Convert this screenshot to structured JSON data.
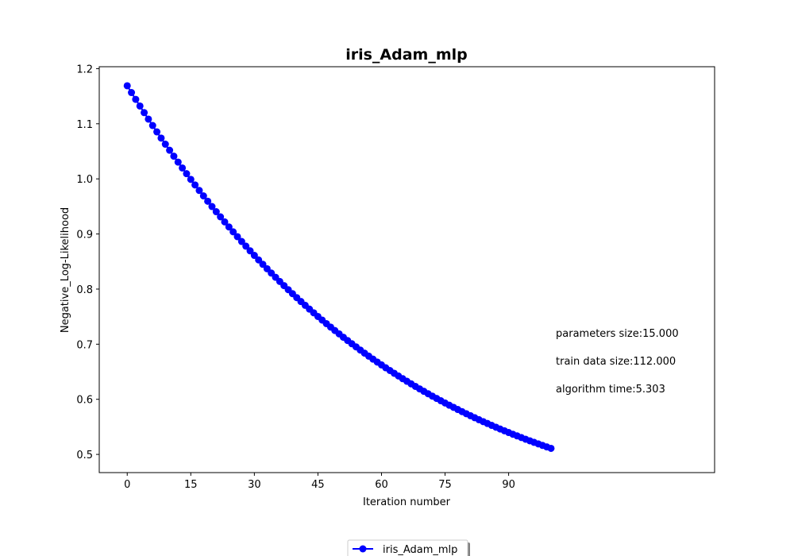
{
  "chart_data": {
    "type": "line",
    "title": "iris_Adam_mlp",
    "xlabel": "Iteration number",
    "ylabel": "Negative_Log-Likelihood",
    "xlim": [
      -6.6,
      138.6
    ],
    "ylim": [
      0.467,
      1.2035
    ],
    "xticks": [
      0,
      15,
      30,
      45,
      60,
      75,
      90
    ],
    "yticks": [
      0.5,
      0.6,
      0.7,
      0.8,
      0.9,
      1.0,
      1.1,
      1.2
    ],
    "ytick_labels": [
      "0.5",
      "0.6",
      "0.7",
      "0.8",
      "0.9",
      "1.0",
      "1.1",
      "1.2"
    ],
    "grid": false,
    "legend_position": "bottom-center",
    "series": [
      {
        "name": "iris_Adam_mlp",
        "color": "#0000ff",
        "marker": "circle",
        "x_start": 0,
        "x_step": 1,
        "values": [
          1.169,
          1.1566,
          1.1443,
          1.1322,
          1.1202,
          1.1084,
          1.0968,
          1.0853,
          1.074,
          1.0629,
          1.0519,
          1.0411,
          1.0304,
          1.0198,
          1.0094,
          0.9991,
          0.989,
          0.979,
          0.9691,
          0.9594,
          0.9498,
          0.9404,
          0.9311,
          0.9219,
          0.9128,
          0.9039,
          0.8951,
          0.8864,
          0.8779,
          0.8694,
          0.8611,
          0.8529,
          0.8449,
          0.8369,
          0.8291,
          0.8214,
          0.8138,
          0.8063,
          0.7989,
          0.7917,
          0.7845,
          0.7774,
          0.7705,
          0.7637,
          0.7569,
          0.7503,
          0.7438,
          0.7373,
          0.731,
          0.7248,
          0.7187,
          0.7126,
          0.7067,
          0.7008,
          0.6951,
          0.6894,
          0.6838,
          0.6783,
          0.6729,
          0.6676,
          0.6624,
          0.6572,
          0.6522,
          0.6472,
          0.6423,
          0.6374,
          0.6327,
          0.628,
          0.6234,
          0.6189,
          0.6145,
          0.6101,
          0.6058,
          0.6016,
          0.5974,
          0.5933,
          0.5893,
          0.5854,
          0.5815,
          0.5777,
          0.5739,
          0.5702,
          0.5666,
          0.563,
          0.5595,
          0.5561,
          0.5527,
          0.5494,
          0.5461,
          0.5429,
          0.5397,
          0.5366,
          0.5336,
          0.5306,
          0.5276,
          0.5247,
          0.5219,
          0.5191,
          0.5163,
          0.5136,
          0.511
        ]
      }
    ],
    "annotations": [
      "parameters size:15.000",
      "train data size:112.000",
      "algorithm time:5.303"
    ]
  }
}
